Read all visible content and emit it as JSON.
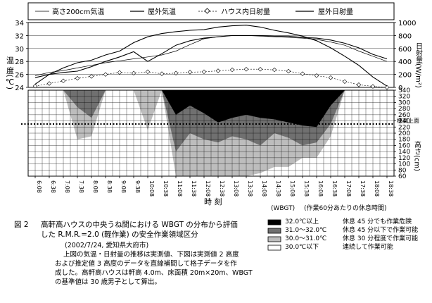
{
  "chart_data": [
    {
      "type": "line",
      "panel": "top",
      "x_unit": "time of day",
      "x": [
        "6:08",
        "6:38",
        "7:08",
        "7:38",
        "8:08",
        "8:38",
        "9:08",
        "9:38",
        "10:08",
        "10:38",
        "11:08",
        "11:38",
        "12:08",
        "12:38",
        "13:08",
        "13:38",
        "14:08",
        "14:38",
        "15:08",
        "15:38",
        "16:08",
        "16:38",
        "17:08",
        "17:38",
        "18:08",
        "18:38"
      ],
      "ylabel_left": "温 度(℃)",
      "ylim_left": [
        24,
        34
      ],
      "yticks_left": [
        "24",
        "26",
        "28",
        "30",
        "32",
        "34"
      ],
      "ylabel_right": "日射量(W/m²)",
      "ylim_right": [
        0,
        1000
      ],
      "yticks_right": [
        "0",
        "200",
        "400",
        "600",
        "800",
        "1000"
      ],
      "legend": {
        "position": "top"
      },
      "series": [
        {
          "name": "高さ200cm気温",
          "axis": "left",
          "marker": "none",
          "values": [
            25.8,
            26.3,
            26.6,
            27.0,
            27.4,
            27.8,
            28.1,
            28.4,
            28.7,
            29.0,
            29.6,
            30.6,
            31.5,
            31.8,
            32.0,
            32.0,
            31.9,
            31.8,
            31.7,
            31.6,
            31.4,
            31.0,
            30.5,
            29.6,
            28.8,
            28.0
          ]
        },
        {
          "name": "屋外気温",
          "axis": "left",
          "marker": "none",
          "values": [
            25.5,
            26.0,
            26.3,
            26.5,
            27.2,
            28.0,
            28.7,
            29.5,
            28.0,
            29.2,
            30.5,
            31.2,
            31.6,
            31.8,
            32.0,
            32.0,
            32.0,
            31.9,
            31.9,
            31.7,
            31.6,
            31.3,
            30.8,
            30.1,
            29.1,
            28.4
          ]
        },
        {
          "name": "ハウス内日射量",
          "axis": "right",
          "marker": "diamond",
          "values": [
            20,
            60,
            100,
            140,
            170,
            200,
            230,
            220,
            240,
            210,
            220,
            235,
            240,
            255,
            270,
            280,
            280,
            270,
            250,
            210,
            180,
            150,
            90,
            40,
            15,
            0
          ]
        },
        {
          "name": "屋外日射量",
          "axis": "right",
          "marker": "none",
          "values": [
            50,
            200,
            300,
            380,
            420,
            500,
            560,
            690,
            780,
            830,
            860,
            880,
            890,
            930,
            950,
            960,
            930,
            880,
            840,
            790,
            720,
            610,
            480,
            340,
            160,
            20
          ]
        }
      ]
    },
    {
      "type": "heatmap",
      "panel": "bottom",
      "x_unit": "time of day",
      "xlabel": "時 刻",
      "x": [
        "6:08",
        "6:38",
        "7:08",
        "7:38",
        "8:08",
        "8:38",
        "9:08",
        "9:38",
        "10:08",
        "10:38",
        "11:08",
        "11:38",
        "12:08",
        "12:38",
        "13:08",
        "13:38",
        "14:08",
        "14:38",
        "15:08",
        "15:38",
        "16:08",
        "16:38",
        "17:08",
        "17:38",
        "18:08",
        "18:38"
      ],
      "ylabel": "高さ(cm)",
      "ylim": [
        60,
        340
      ],
      "yticks": [
        "60",
        "80",
        "100",
        "120",
        "140",
        "160",
        "180",
        "200",
        "220",
        "240",
        "260",
        "280",
        "300",
        "320",
        "340"
      ],
      "reference_line": {
        "height_cm": 230,
        "label": "棟高上面"
      },
      "value_meaning": "WBGT class: 0=30.0℃以下, 1=30.0〜31.0℃, 2=31.0〜32.0℃, 3=32.0℃以上",
      "boundary_heights_cm": {
        "top_of_class_ge1": [
          340,
          340,
          340,
          180,
          190,
          340,
          340,
          340,
          210,
          340,
          60,
          60,
          60,
          60,
          60,
          60,
          70,
          90,
          90,
          120,
          120,
          190,
          340,
          340,
          340,
          340
        ],
        "top_of_class_ge2": [
          340,
          340,
          340,
          285,
          250,
          340,
          340,
          340,
          340,
          340,
          140,
          200,
          180,
          170,
          190,
          180,
          160,
          200,
          185,
          160,
          170,
          230,
          340,
          340,
          340,
          340
        ],
        "top_of_class_3": [
          340,
          340,
          340,
          340,
          340,
          340,
          340,
          340,
          340,
          340,
          260,
          290,
          265,
          235,
          250,
          260,
          250,
          245,
          235,
          225,
          220,
          290,
          340,
          340,
          340,
          340
        ]
      },
      "legend": {
        "title": "(作業60分あたりの休息時間)",
        "items": [
          {
            "range": "32.0℃以上",
            "rest": "休息 45 分でも作業危険",
            "color": "#000000"
          },
          {
            "range": "31.0〜32.0℃",
            "rest": "休息 45 分以下で作業可能",
            "color": "#707070"
          },
          {
            "range": "30.0〜31.0℃",
            "rest": "休息 30 分程度で作業可能",
            "color": "#bdbdbd"
          },
          {
            "range": "30.0℃以下",
            "rest": "連続して作業可能",
            "color": "#ffffff"
          }
        ],
        "header_left": "(WBGT)"
      }
    }
  ],
  "caption": {
    "label": "図 2",
    "line1": "高軒高ハウスの中央うね間における WBGT の分布から評価",
    "line2": "した R.M.R.=2.0 (軽作業) の安全作業領域区分",
    "date_place": "(2002/7/24, 愛知県大府市)",
    "note1": "上図の気温・日射量の推移は実測値、下図は実測値 2 高度",
    "note2": "および推定値 3 高度のデータを直線補間して格子データを作",
    "note3": "成した。高軒高ハウスは軒高 4.0m、床面積 20m×20m、WBGT",
    "note4": "の基準値は 30 歳男子として算出。"
  }
}
